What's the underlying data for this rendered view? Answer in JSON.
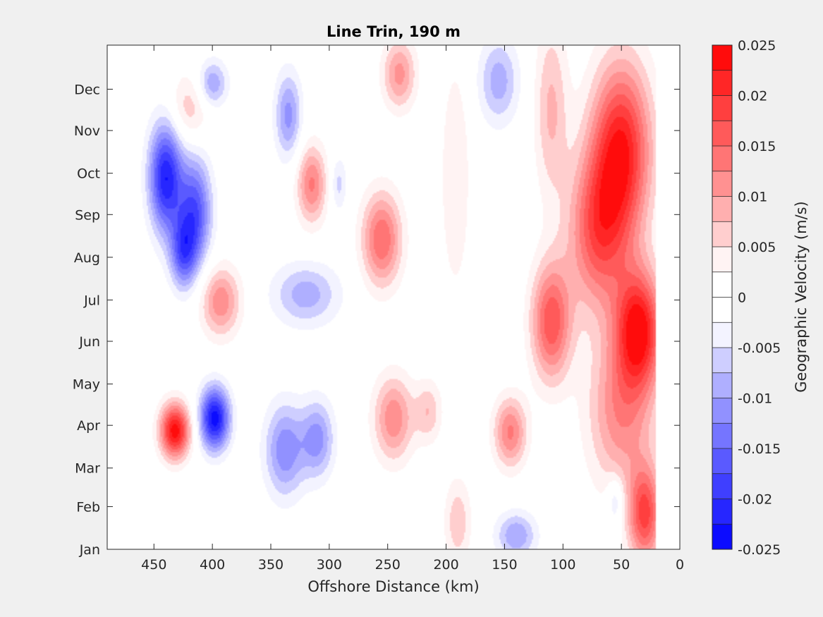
{
  "chart_data": {
    "type": "heatmap",
    "subtype": "filled-contour",
    "title": "Line Trin, 190 m",
    "xlabel": "Offshore Distance (km)",
    "ylabel": "",
    "x_direction": "reversed",
    "xlim": [
      490,
      0
    ],
    "x_ticks": [
      450,
      400,
      350,
      300,
      250,
      200,
      150,
      100,
      50,
      0
    ],
    "y_ticks": [
      "Jan",
      "Feb",
      "Mar",
      "Apr",
      "May",
      "Jun",
      "Jul",
      "Aug",
      "Sep",
      "Oct",
      "Nov",
      "Dec"
    ],
    "y_tick_days": [
      0,
      31,
      59,
      90,
      120,
      151,
      181,
      212,
      243,
      273,
      304,
      334
    ],
    "ylim_days": [
      0,
      366
    ],
    "data_extent_km": [
      490,
      20
    ],
    "colorbar": {
      "label": "Geographic Velocity (m/s)",
      "levels": [
        -0.025,
        -0.0225,
        -0.02,
        -0.0175,
        -0.015,
        -0.0125,
        -0.01,
        -0.0075,
        -0.005,
        -0.0025,
        0,
        0.0025,
        0.005,
        0.0075,
        0.01,
        0.0125,
        0.015,
        0.0175,
        0.02,
        0.0225,
        0.025
      ],
      "tick_values": [
        -0.025,
        -0.02,
        -0.015,
        -0.01,
        -0.005,
        0,
        0.005,
        0.01,
        0.015,
        0.02,
        0.025
      ],
      "tick_labels": [
        "-0.025",
        "-0.02",
        "-0.015",
        "-0.01",
        "-0.005",
        "0",
        "0.005",
        "0.01",
        "0.015",
        "0.02",
        "0.025"
      ],
      "negative_color": "#0000ff",
      "zero_color": "#ffffff",
      "positive_color": "#ff0000"
    },
    "features": [
      {
        "x": 440,
        "y": 270,
        "sx": 10,
        "sy": 28,
        "amp": -0.022
      },
      {
        "x": 415,
        "y": 245,
        "sx": 10,
        "sy": 28,
        "amp": -0.017
      },
      {
        "x": 425,
        "y": 215,
        "sx": 8,
        "sy": 18,
        "amp": -0.014
      },
      {
        "x": 432,
        "y": 86,
        "sx": 9,
        "sy": 14,
        "amp": 0.024
      },
      {
        "x": 398,
        "y": 95,
        "sx": 9,
        "sy": 16,
        "amp": -0.024
      },
      {
        "x": 393,
        "y": 180,
        "sx": 12,
        "sy": 18,
        "amp": 0.012
      },
      {
        "x": 400,
        "y": 338,
        "sx": 9,
        "sy": 12,
        "amp": -0.01
      },
      {
        "x": 420,
        "y": 320,
        "sx": 12,
        "sy": 18,
        "amp": 0.007
      },
      {
        "x": 335,
        "y": 315,
        "sx": 8,
        "sy": 22,
        "amp": -0.011
      },
      {
        "x": 315,
        "y": 265,
        "sx": 9,
        "sy": 20,
        "amp": 0.013
      },
      {
        "x": 320,
        "y": 185,
        "sx": 20,
        "sy": 16,
        "amp": -0.009
      },
      {
        "x": 338,
        "y": 72,
        "sx": 12,
        "sy": 24,
        "amp": -0.012
      },
      {
        "x": 310,
        "y": 80,
        "sx": 10,
        "sy": 20,
        "amp": -0.011
      },
      {
        "x": 292,
        "y": 265,
        "sx": 5,
        "sy": 14,
        "amp": -0.006
      },
      {
        "x": 255,
        "y": 225,
        "sx": 12,
        "sy": 24,
        "amp": 0.015
      },
      {
        "x": 245,
        "y": 95,
        "sx": 12,
        "sy": 22,
        "amp": 0.012
      },
      {
        "x": 240,
        "y": 345,
        "sx": 10,
        "sy": 18,
        "amp": 0.011
      },
      {
        "x": 215,
        "y": 100,
        "sx": 8,
        "sy": 16,
        "amp": 0.007
      },
      {
        "x": 192,
        "y": 270,
        "sx": 9,
        "sy": 60,
        "amp": 0.005
      },
      {
        "x": 190,
        "y": 20,
        "sx": 8,
        "sy": 22,
        "amp": 0.007
      },
      {
        "x": 155,
        "y": 340,
        "sx": 12,
        "sy": 22,
        "amp": -0.009
      },
      {
        "x": 145,
        "y": 85,
        "sx": 10,
        "sy": 18,
        "amp": 0.013
      },
      {
        "x": 140,
        "y": 10,
        "sx": 12,
        "sy": 12,
        "amp": -0.01
      },
      {
        "x": 110,
        "y": 165,
        "sx": 12,
        "sy": 30,
        "amp": 0.017
      },
      {
        "x": 110,
        "y": 320,
        "sx": 10,
        "sy": 45,
        "amp": 0.008
      },
      {
        "x": 50,
        "y": 290,
        "sx": 18,
        "sy": 45,
        "amp": 0.022
      },
      {
        "x": 70,
        "y": 230,
        "sx": 18,
        "sy": 40,
        "amp": 0.016
      },
      {
        "x": 35,
        "y": 160,
        "sx": 14,
        "sy": 30,
        "amp": 0.023
      },
      {
        "x": 50,
        "y": 100,
        "sx": 20,
        "sy": 40,
        "amp": 0.012
      },
      {
        "x": 30,
        "y": 25,
        "sx": 10,
        "sy": 25,
        "amp": 0.018
      },
      {
        "x": 55,
        "y": 35,
        "sx": 5,
        "sy": 12,
        "amp": -0.007
      }
    ]
  }
}
